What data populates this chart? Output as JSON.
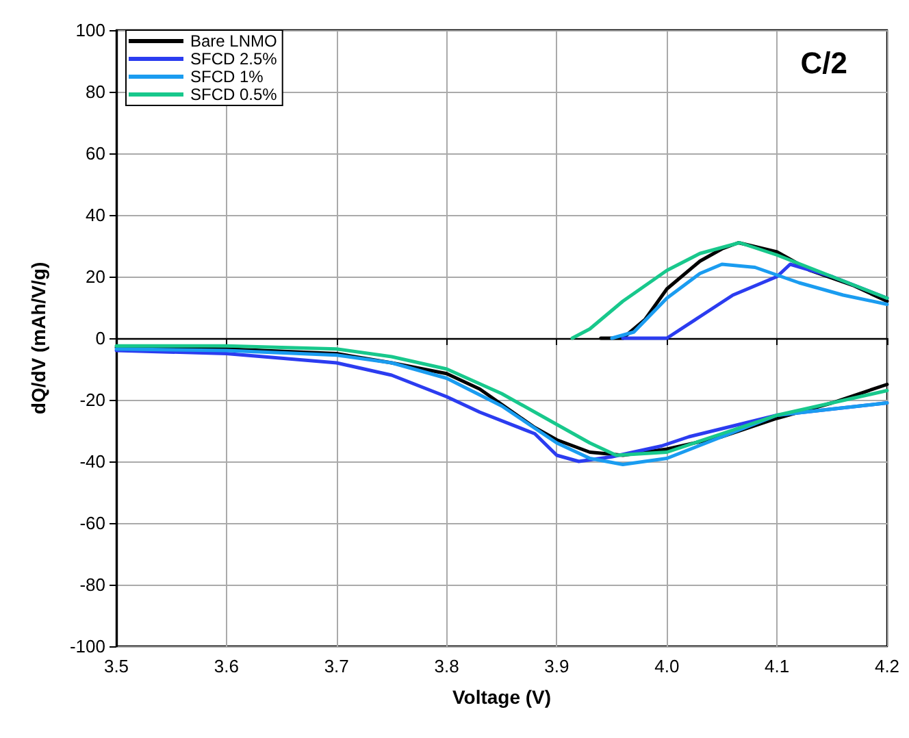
{
  "chart_data": {
    "type": "line",
    "xlabel": "Voltage (V)",
    "ylabel": "dQ/dV (mAh/V/g)",
    "annotations": [
      "C/2"
    ],
    "xlim": [
      3.5,
      4.2
    ],
    "xticks": [
      3.5,
      3.6,
      3.7,
      3.8,
      3.9,
      {
        "value": 4.0,
        "label": "4.0"
      },
      4.1,
      4.2
    ],
    "ylim": [
      -100,
      100
    ],
    "yticks": [
      -100,
      -80,
      -60,
      -40,
      -20,
      0,
      20,
      40,
      60,
      80,
      100
    ],
    "grid": true,
    "legend": "top left",
    "line_style": "solid",
    "marker": "none",
    "series": [
      {
        "name": "Bare LNMO",
        "color": "#000000",
        "x": [
          3.5,
          3.6,
          3.7,
          3.75,
          3.8,
          3.83,
          3.88,
          3.9,
          3.93,
          3.96,
          4.0,
          4.05,
          4.1,
          4.15,
          4.2
        ],
        "values": [
          -3,
          -3.5,
          -5,
          -8,
          -11.5,
          -16.5,
          -29,
          -33,
          -37,
          -38,
          -36,
          -32,
          -26,
          -21,
          -15
        ]
      },
      {
        "color": "#000000",
        "x": [
          3.94,
          3.96,
          3.98,
          4.0,
          4.03,
          4.05,
          4.065,
          4.1,
          4.13,
          4.17,
          4.2
        ],
        "values": [
          0,
          0,
          6,
          16,
          25,
          29,
          31,
          28,
          22,
          17,
          12
        ]
      },
      {
        "name": "SFCD 2.5%",
        "color": "#2b3cf0",
        "x": [
          3.5,
          3.6,
          3.7,
          3.75,
          3.8,
          3.83,
          3.88,
          3.9,
          3.92,
          3.95,
          3.995,
          4.02,
          4.1,
          4.15,
          4.2
        ],
        "values": [
          -4,
          -5,
          -8,
          -12,
          -19,
          -24,
          -31,
          -38,
          -40,
          -38.5,
          -35,
          -32,
          -25,
          -23,
          -21
        ]
      },
      {
        "color": "#2b3cf0",
        "x": [
          3.96,
          4.0,
          4.03,
          4.06,
          4.1,
          4.112,
          4.15,
          4.2
        ],
        "values": [
          0,
          0,
          7,
          14,
          20,
          24,
          20,
          13
        ]
      },
      {
        "name": "SFCD 1%",
        "color": "#1a9cf0",
        "x": [
          3.5,
          3.6,
          3.7,
          3.75,
          3.8,
          3.85,
          3.9,
          3.93,
          3.96,
          4.0,
          4.05,
          4.1,
          4.15,
          4.2
        ],
        "values": [
          -3.5,
          -4,
          -5.5,
          -8,
          -13,
          -22,
          -34,
          -39,
          -41,
          -39,
          -32,
          -25,
          -23,
          -21
        ]
      },
      {
        "color": "#1a9cf0",
        "x": [
          3.95,
          3.97,
          4.0,
          4.03,
          4.05,
          4.08,
          4.12,
          4.16,
          4.2
        ],
        "values": [
          0,
          2,
          13,
          21,
          24,
          23,
          18,
          14,
          11
        ]
      },
      {
        "name": "SFCD 0.5%",
        "color": "#18c88c",
        "x": [
          3.5,
          3.6,
          3.7,
          3.75,
          3.8,
          3.85,
          3.9,
          3.93,
          3.954,
          4.0,
          4.05,
          4.1,
          4.15,
          4.2
        ],
        "values": [
          -2.5,
          -2.5,
          -3.5,
          -6,
          -10,
          -18,
          -28,
          -34,
          -38,
          -37,
          -31,
          -25,
          -21,
          -17
        ]
      },
      {
        "color": "#18c88c",
        "x": [
          3.914,
          3.93,
          3.96,
          4.0,
          4.03,
          4.066,
          4.1,
          4.15,
          4.2
        ],
        "values": [
          0,
          3,
          12,
          22,
          27.5,
          31,
          27,
          20,
          13
        ]
      }
    ]
  }
}
